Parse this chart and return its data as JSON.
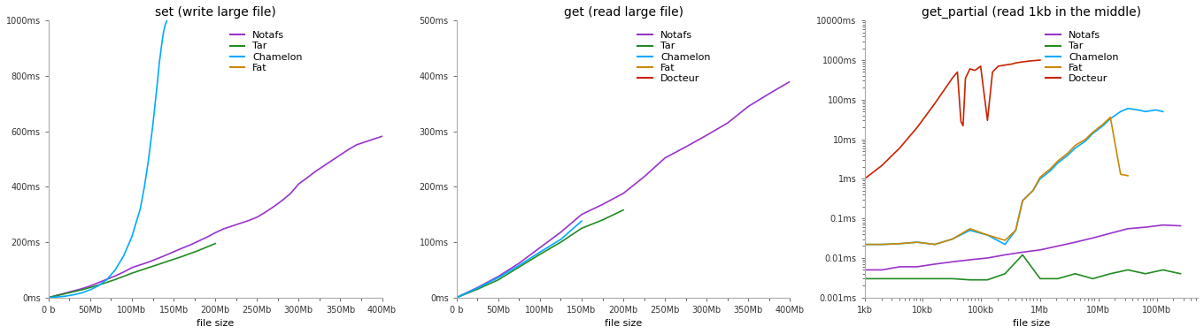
{
  "plot1": {
    "title": "set (write large file)",
    "xlabel": "file size",
    "xtick_vals": [
      0,
      50,
      100,
      150,
      200,
      250,
      300,
      350,
      400
    ],
    "xtick_labels": [
      "0 b",
      "50Mb",
      "100Mb",
      "150Mb",
      "200Mb",
      "250Mb",
      "300Mb",
      "350Mb",
      "400Mb"
    ],
    "ytick_vals": [
      0,
      200,
      400,
      600,
      800,
      1000
    ],
    "ytick_labels": [
      "0ms",
      "200ms",
      "400ms",
      "600ms",
      "800ms",
      "1000ms"
    ],
    "xlim": [
      0,
      400
    ],
    "ylim": [
      0,
      1000
    ],
    "series": [
      {
        "name": "Notafs",
        "color": "#9933cc",
        "x": [
          0,
          10,
          20,
          30,
          40,
          50,
          60,
          70,
          80,
          90,
          100,
          110,
          120,
          130,
          140,
          150,
          160,
          170,
          180,
          190,
          200,
          210,
          220,
          230,
          240,
          250,
          260,
          270,
          280,
          290,
          300,
          310,
          320,
          330,
          340,
          350,
          360,
          370,
          380,
          390,
          400
        ],
        "y": [
          0,
          8,
          16,
          24,
          32,
          42,
          54,
          66,
          78,
          92,
          108,
          118,
          128,
          140,
          152,
          165,
          178,
          190,
          204,
          218,
          234,
          248,
          258,
          268,
          278,
          290,
          308,
          328,
          350,
          375,
          410,
          432,
          455,
          475,
          495,
          515,
          535,
          552,
          562,
          572,
          582
        ]
      },
      {
        "name": "Tar",
        "color": "#228B22",
        "x": [
          0,
          20,
          40,
          60,
          80,
          100,
          120,
          140,
          160,
          180,
          200
        ],
        "y": [
          0,
          14,
          28,
          45,
          65,
          88,
          108,
          128,
          148,
          170,
          195
        ]
      },
      {
        "name": "Chamelon",
        "color": "#00aaff",
        "x": [
          0,
          10,
          20,
          30,
          40,
          50,
          60,
          70,
          80,
          90,
          100,
          110,
          115,
          120,
          125,
          130,
          133,
          136,
          138,
          140,
          142,
          144,
          145
        ],
        "y": [
          0,
          2,
          5,
          10,
          17,
          28,
          43,
          65,
          100,
          150,
          220,
          320,
          400,
          500,
          620,
          760,
          850,
          920,
          960,
          985,
          1000,
          1010,
          1015
        ]
      },
      {
        "name": "Fat",
        "color": "#cc8800",
        "x": [
          0,
          0
        ],
        "y": [
          0,
          240
        ]
      }
    ],
    "legend": [
      "Notafs",
      "Tar",
      "Chamelon",
      "Fat"
    ]
  },
  "plot2": {
    "title": "get (read large file)",
    "xlabel": "file size",
    "xtick_vals": [
      0,
      50,
      100,
      150,
      200,
      250,
      300,
      350,
      400
    ],
    "xtick_labels": [
      "0 b",
      "50Mb",
      "100Mb",
      "150Mb",
      "200Mb",
      "250Mb",
      "300Mb",
      "350Mb",
      "400Mb"
    ],
    "ytick_vals": [
      0,
      100,
      200,
      300,
      400,
      500
    ],
    "ytick_labels": [
      "0ms",
      "100ms",
      "200ms",
      "300ms",
      "400ms",
      "500ms"
    ],
    "xlim": [
      0,
      400
    ],
    "ylim": [
      0,
      500
    ],
    "series": [
      {
        "name": "Docteur",
        "color": "#cc2200",
        "x": [
          0,
          0
        ],
        "y": [
          0,
          500
        ]
      },
      {
        "name": "Notafs",
        "color": "#9933cc",
        "x": [
          0,
          25,
          50,
          75,
          100,
          125,
          150,
          175,
          200,
          225,
          250,
          275,
          300,
          325,
          350,
          375,
          400
        ],
        "y": [
          0,
          18,
          38,
          62,
          90,
          118,
          150,
          168,
          188,
          218,
          252,
          272,
          293,
          315,
          345,
          368,
          390
        ]
      },
      {
        "name": "Tar",
        "color": "#228B22",
        "x": [
          0,
          25,
          50,
          75,
          100,
          125,
          150,
          175,
          200
        ],
        "y": [
          0,
          15,
          32,
          55,
          78,
          100,
          125,
          140,
          158
        ]
      },
      {
        "name": "Chamelon",
        "color": "#00aaff",
        "x": [
          0,
          25,
          50,
          75,
          100,
          125,
          150
        ],
        "y": [
          0,
          17,
          36,
          58,
          82,
          105,
          138
        ]
      },
      {
        "name": "Fat",
        "color": "#cc8800",
        "x": [
          0,
          0.5
        ],
        "y": [
          8,
          14
        ]
      }
    ],
    "legend": [
      "Notafs",
      "Tar",
      "Chamelon",
      "Fat",
      "Docteur"
    ]
  },
  "plot3": {
    "title": "get_partial (read 1kb in the middle)",
    "xlabel": "file size",
    "xlim_bytes": [
      1024,
      536870912
    ],
    "ylim_ms": [
      0.001,
      10000
    ],
    "xtick_vals": [
      1024,
      10240,
      102400,
      1048576,
      10485760,
      104857600
    ],
    "xtick_labels": [
      "1kb",
      "10kb",
      "100kb",
      "1Mb",
      "10Mb",
      "100Mb"
    ],
    "ytick_vals": [
      0.001,
      0.01,
      0.1,
      1,
      10,
      100,
      1000,
      10000
    ],
    "ytick_labels": [
      "0.001ms",
      "0.01ms",
      "0.1ms",
      "1ms",
      "10ms",
      "100ms",
      "1000ms",
      "10000ms"
    ],
    "series": [
      {
        "name": "Docteur",
        "color": "#cc2200",
        "x": [
          1024,
          2048,
          4096,
          8192,
          16384,
          32768,
          40000,
          46000,
          50000,
          55000,
          65536,
          80000,
          100000,
          131072,
          160000,
          200000,
          262144,
          350000,
          400000,
          524288,
          700000,
          1048576
        ],
        "y": [
          1.0,
          2.2,
          6.0,
          20.0,
          80.0,
          350.0,
          500.0,
          28.0,
          22.0,
          350.0,
          600.0,
          550.0,
          700.0,
          30.0,
          500.0,
          700.0,
          750.0,
          800.0,
          850.0,
          900.0,
          950.0,
          1000.0
        ]
      },
      {
        "name": "Chamelon",
        "color": "#00aaff",
        "x": [
          1024,
          2048,
          4096,
          8192,
          16384,
          32768,
          65536,
          131072,
          262144,
          400000,
          524288,
          786432,
          1048576,
          1572864,
          2097152,
          3145728,
          4194304,
          6291456,
          8388608,
          12582912,
          16777216,
          25165824,
          33554432,
          50331648,
          67108864,
          100663296,
          134217728
        ],
        "y": [
          0.022,
          0.022,
          0.023,
          0.025,
          0.022,
          0.03,
          0.05,
          0.038,
          0.022,
          0.05,
          0.28,
          0.5,
          1.0,
          1.6,
          2.5,
          4.0,
          6.0,
          9.0,
          14.0,
          22.0,
          33.0,
          50.0,
          60.0,
          55.0,
          50.0,
          55.0,
          50.0
        ]
      },
      {
        "name": "Fat",
        "color": "#cc8800",
        "x": [
          1024,
          2048,
          4096,
          8192,
          16384,
          32768,
          65536,
          131072,
          262144,
          400000,
          524288,
          786432,
          1048576,
          1572864,
          2097152,
          3145728,
          4194304,
          6291456,
          8388608,
          12582912,
          16777216,
          25165824,
          33554432
        ],
        "y": [
          0.022,
          0.022,
          0.023,
          0.025,
          0.022,
          0.03,
          0.055,
          0.038,
          0.028,
          0.05,
          0.28,
          0.5,
          1.1,
          1.8,
          2.8,
          4.5,
          7.0,
          10.0,
          15.0,
          24.0,
          36.0,
          1.3,
          1.2
        ]
      },
      {
        "name": "Notafs",
        "color": "#9933cc",
        "x": [
          1024,
          2048,
          4096,
          8192,
          16384,
          32768,
          65536,
          131072,
          262144,
          524288,
          1048576,
          2097152,
          4194304,
          8388608,
          16777216,
          33554432,
          67108864,
          134217728,
          268435456
        ],
        "y": [
          0.005,
          0.005,
          0.006,
          0.006,
          0.007,
          0.008,
          0.009,
          0.01,
          0.012,
          0.014,
          0.016,
          0.02,
          0.025,
          0.032,
          0.042,
          0.055,
          0.06,
          0.068,
          0.065
        ]
      },
      {
        "name": "Tar",
        "color": "#228B22",
        "x": [
          1024,
          2048,
          4096,
          8192,
          16384,
          32768,
          65536,
          131072,
          262144,
          524288,
          1048576,
          2097152,
          4194304,
          8388608,
          16777216,
          33554432,
          67108864,
          134217728,
          268435456
        ],
        "y": [
          0.003,
          0.003,
          0.003,
          0.003,
          0.003,
          0.003,
          0.0028,
          0.0028,
          0.004,
          0.012,
          0.003,
          0.003,
          0.004,
          0.003,
          0.004,
          0.005,
          0.004,
          0.005,
          0.004
        ]
      }
    ],
    "legend": [
      "Notafs",
      "Tar",
      "Chamelon",
      "Fat",
      "Docteur"
    ]
  },
  "bg_color": "#ffffff",
  "spine_color": "#aaaaaa",
  "tick_color": "#333333",
  "label_fontsize": 8,
  "title_fontsize": 10,
  "legend_fontsize": 8,
  "line_width": 1.2
}
